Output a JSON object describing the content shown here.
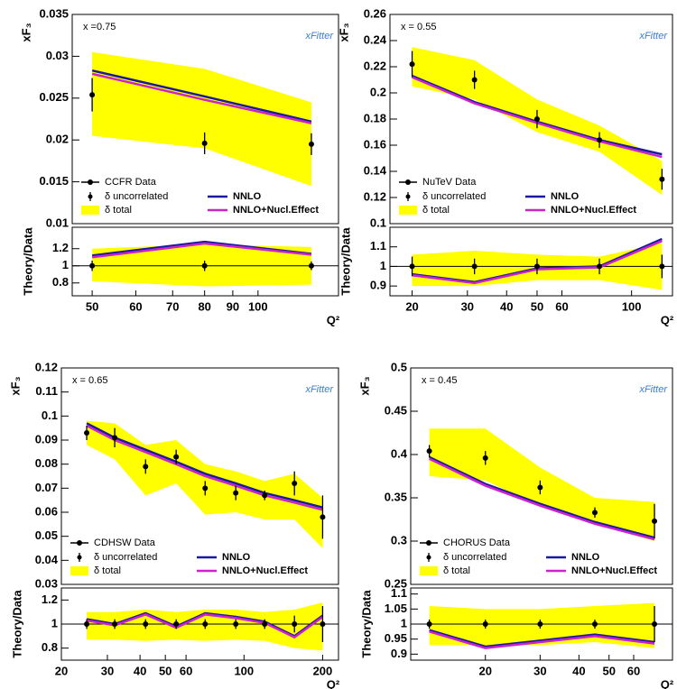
{
  "chart_data": [
    {
      "type": "line",
      "log_x": true,
      "xlim": [
        46,
        140
      ],
      "ylim": [
        0.01,
        0.035
      ],
      "yticks": [
        0.01,
        0.015,
        0.02,
        0.025,
        0.03,
        0.035
      ],
      "ylabel": "xF₃",
      "annotation": "x =0.75",
      "logo": "xFitter",
      "x": [
        50,
        80,
        125
      ],
      "data": {
        "name": "CCFR Data",
        "error_name": "δ uncorrelated",
        "color": "#000000",
        "values": [
          0.0254,
          0.0196,
          0.0195
        ],
        "errors": [
          0.002,
          0.0013,
          0.0013
        ]
      },
      "band": {
        "name": "δ total",
        "color": "#ffff00",
        "lower": [
          0.0205,
          0.019,
          0.0145
        ],
        "upper": [
          0.0305,
          0.0285,
          0.0245
        ]
      },
      "series": [
        {
          "name": "NNLO",
          "color": "#1a1aa0",
          "values": [
            0.0283,
            0.0252,
            0.0222
          ]
        },
        {
          "name": "NNLO+Nucl.Effect",
          "color": "#cc22cc",
          "values": [
            0.0279,
            0.0248,
            0.022
          ]
        }
      ]
    },
    {
      "type": "line",
      "log_x": true,
      "xlim": [
        46,
        140
      ],
      "xticks": [
        50,
        60,
        70,
        80,
        90,
        100
      ],
      "xlabel": "Q²",
      "ylim": [
        0.65,
        1.45
      ],
      "yticks": [
        0.8,
        1,
        1.2
      ],
      "ylabel": "Theory/Data",
      "reference_line": 1,
      "x": [
        50,
        80,
        125
      ],
      "data": {
        "color": "#000000",
        "values": [
          1,
          1,
          1
        ],
        "errors": [
          0.06,
          0.06,
          0.05
        ]
      },
      "band": {
        "color": "#ffff00",
        "lower": [
          0.82,
          0.76,
          0.78
        ],
        "upper": [
          1.2,
          1.25,
          1.22
        ]
      },
      "series": [
        {
          "color": "#1a1aa0",
          "values": [
            1.12,
            1.28,
            1.14
          ]
        },
        {
          "color": "#cc22cc",
          "values": [
            1.1,
            1.26,
            1.13
          ]
        }
      ]
    },
    {
      "type": "line",
      "log_x": true,
      "xlim": [
        17,
        135
      ],
      "ylim": [
        0.1,
        0.26
      ],
      "yticks": [
        0.1,
        0.12,
        0.14,
        0.16,
        0.18,
        0.2,
        0.22,
        0.24,
        0.26
      ],
      "ylabel": "xF₃",
      "annotation": "x = 0.55",
      "logo": "xFitter",
      "x": [
        20,
        31.6,
        50,
        79,
        125
      ],
      "data": {
        "name": "NuTeV  Data",
        "error_name": "δ uncorrelated",
        "color": "#000000",
        "values": [
          0.222,
          0.21,
          0.18,
          0.164,
          0.134
        ],
        "errors": [
          0.01,
          0.007,
          0.007,
          0.006,
          0.008
        ]
      },
      "band": {
        "name": "δ total",
        "color": "#ffff00",
        "lower": [
          0.205,
          0.195,
          0.17,
          0.155,
          0.122
        ],
        "upper": [
          0.235,
          0.225,
          0.195,
          0.175,
          0.148
        ]
      },
      "series": [
        {
          "name": "NNLO",
          "color": "#1a1aa0",
          "values": [
            0.213,
            0.193,
            0.178,
            0.164,
            0.153
          ]
        },
        {
          "name": "NNLO+Nucl.Effect",
          "color": "#cc22cc",
          "values": [
            0.212,
            0.192,
            0.177,
            0.163,
            0.151
          ]
        }
      ]
    },
    {
      "type": "line",
      "log_x": true,
      "xlim": [
        17,
        135
      ],
      "xticks": [
        20,
        30,
        40,
        50,
        60,
        100
      ],
      "xlabel": "Q²",
      "ylim": [
        0.85,
        1.2
      ],
      "yticks": [
        0.9,
        1,
        1.1
      ],
      "ylabel": "Theory/Data",
      "reference_line": 1,
      "x": [
        20,
        31.6,
        50,
        79,
        125
      ],
      "data": {
        "color": "#000000",
        "values": [
          1,
          1,
          1,
          1,
          1
        ],
        "errors": [
          0.05,
          0.04,
          0.04,
          0.04,
          0.06
        ]
      },
      "band": {
        "color": "#ffff00",
        "lower": [
          0.9,
          0.9,
          0.93,
          0.93,
          0.88
        ],
        "upper": [
          1.06,
          1.08,
          1.06,
          1.05,
          1.12
        ]
      },
      "series": [
        {
          "color": "#1a1aa0",
          "values": [
            0.96,
            0.92,
            0.99,
            1.0,
            1.14
          ]
        },
        {
          "color": "#cc22cc",
          "values": [
            0.955,
            0.915,
            0.985,
            0.995,
            1.13
          ]
        }
      ]
    },
    {
      "type": "line",
      "log_x": true,
      "xlim": [
        20,
        230
      ],
      "ylim": [
        0.03,
        0.12
      ],
      "yticks": [
        0.03,
        0.04,
        0.05,
        0.06,
        0.07,
        0.08,
        0.09,
        0.1,
        0.11,
        0.12
      ],
      "ylabel": "xF₃",
      "annotation": "x = 0.65",
      "logo": "xFitter",
      "x": [
        25,
        32,
        42,
        55,
        71,
        93,
        120,
        156,
        200
      ],
      "data": {
        "name": "CDHSW Data",
        "error_name": "δ uncorrelated",
        "color": "#000000",
        "values": [
          0.093,
          0.091,
          0.079,
          0.083,
          0.07,
          0.068,
          0.067,
          0.072,
          0.058
        ],
        "errors": [
          0.003,
          0.004,
          0.003,
          0.003,
          0.003,
          0.003,
          0.002,
          0.005,
          0.009
        ]
      },
      "band": {
        "name": "δ total",
        "color": "#ffff00",
        "lower": [
          0.088,
          0.082,
          0.067,
          0.072,
          0.059,
          0.06,
          0.057,
          0.057,
          0.045
        ],
        "upper": [
          0.098,
          0.097,
          0.088,
          0.09,
          0.08,
          0.077,
          0.073,
          0.076,
          0.066
        ]
      },
      "series": [
        {
          "name": "NNLO",
          "color": "#1a1aa0",
          "values": [
            0.097,
            0.091,
            0.086,
            0.081,
            0.076,
            0.072,
            0.068,
            0.065,
            0.062
          ]
        },
        {
          "name": "NNLO+Nucl.Effect",
          "color": "#cc22cc",
          "values": [
            0.096,
            0.09,
            0.085,
            0.08,
            0.075,
            0.071,
            0.067,
            0.064,
            0.061
          ]
        }
      ]
    },
    {
      "type": "line",
      "log_x": true,
      "xlim": [
        20,
        230
      ],
      "xticks": [
        20,
        30,
        40,
        50,
        60,
        100,
        200
      ],
      "xlabel": "Q²",
      "ylim": [
        0.7,
        1.3
      ],
      "yticks": [
        0.8,
        1,
        1.2
      ],
      "ylabel": "Theory/Data",
      "reference_line": 1,
      "x": [
        25,
        32,
        42,
        55,
        71,
        93,
        120,
        156,
        200
      ],
      "data": {
        "color": "#000000",
        "values": [
          1,
          1,
          1,
          1,
          1,
          1,
          1,
          1,
          1
        ],
        "errors": [
          0.04,
          0.04,
          0.04,
          0.04,
          0.04,
          0.04,
          0.04,
          0.07,
          0.15
        ]
      },
      "band": {
        "color": "#ffff00",
        "lower": [
          0.87,
          0.87,
          0.86,
          0.87,
          0.86,
          0.87,
          0.86,
          0.8,
          0.78
        ],
        "upper": [
          1.1,
          1.1,
          1.12,
          1.1,
          1.12,
          1.12,
          1.1,
          1.12,
          1.18
        ]
      },
      "series": [
        {
          "color": "#1a1aa0",
          "values": [
            1.04,
            1.0,
            1.09,
            0.98,
            1.09,
            1.06,
            1.02,
            0.9,
            1.07
          ]
        },
        {
          "color": "#cc22cc",
          "values": [
            1.03,
            0.99,
            1.08,
            0.97,
            1.08,
            1.05,
            1.01,
            0.89,
            1.06
          ]
        }
      ]
    },
    {
      "type": "line",
      "log_x": true,
      "xlim": [
        11.5,
        80
      ],
      "ylim": [
        0.25,
        0.5
      ],
      "yticks": [
        0.25,
        0.3,
        0.35,
        0.4,
        0.45,
        0.5
      ],
      "ylabel": "xF₃",
      "annotation": "x = 0.45",
      "logo": "xFitter",
      "x": [
        13.2,
        20,
        30,
        45,
        70
      ],
      "data": {
        "name": "CHORUS Data",
        "error_name": "δ uncorrelated",
        "color": "#000000",
        "values": [
          0.404,
          0.396,
          0.362,
          0.333,
          0.323
        ],
        "errors": [
          0.007,
          0.008,
          0.008,
          0.006,
          0.02
        ]
      },
      "band": {
        "name": "δ total",
        "color": "#ffff00",
        "lower": [
          0.375,
          0.37,
          0.34,
          0.32,
          0.3
        ],
        "upper": [
          0.43,
          0.43,
          0.385,
          0.35,
          0.345
        ]
      },
      "series": [
        {
          "name": "NNLO",
          "color": "#1a1aa0",
          "values": [
            0.397,
            0.366,
            0.343,
            0.322,
            0.304
          ]
        },
        {
          "name": "NNLO+Nucl.Effect",
          "color": "#cc22cc",
          "values": [
            0.395,
            0.364,
            0.341,
            0.32,
            0.302
          ]
        }
      ]
    },
    {
      "type": "line",
      "log_x": true,
      "xlim": [
        11.5,
        80
      ],
      "xticks": [
        20,
        30,
        40,
        50,
        60
      ],
      "xlabel": "Q²",
      "ylim": [
        0.88,
        1.12
      ],
      "yticks": [
        0.9,
        0.95,
        1,
        1.05,
        1.1
      ],
      "ylabel": "Theory/Data",
      "reference_line": 1,
      "x": [
        13.2,
        20,
        30,
        45,
        70
      ],
      "data": {
        "color": "#000000",
        "values": [
          1,
          1,
          1,
          1,
          1
        ],
        "errors": [
          0.015,
          0.015,
          0.015,
          0.015,
          0.06
        ]
      },
      "band": {
        "color": "#ffff00",
        "lower": [
          0.93,
          0.93,
          0.93,
          0.94,
          0.92
        ],
        "upper": [
          1.06,
          1.05,
          1.05,
          1.06,
          1.07
        ]
      },
      "series": [
        {
          "color": "#1a1aa0",
          "values": [
            0.98,
            0.925,
            0.945,
            0.965,
            0.94
          ]
        },
        {
          "color": "#cc22cc",
          "values": [
            0.975,
            0.92,
            0.94,
            0.96,
            0.935
          ]
        }
      ]
    }
  ]
}
